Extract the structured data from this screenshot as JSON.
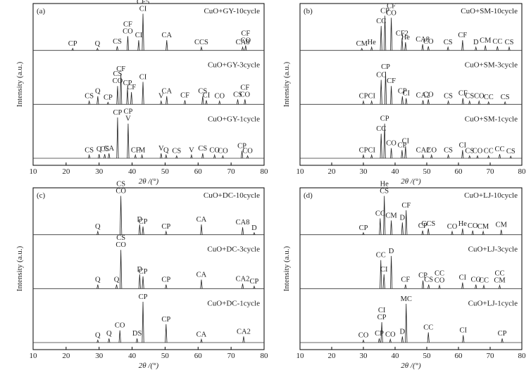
{
  "chart_data": [
    {
      "type": "line",
      "panel": "(a)",
      "xlabel": "2θ /(°)",
      "ylabel": "Intensity (a.u.)",
      "xlim": [
        10,
        80
      ],
      "xticks": [
        10,
        20,
        30,
        40,
        50,
        60,
        70,
        80
      ],
      "series": [
        {
          "name": "CuO+GY-10cycle",
          "x": [
            22,
            29.5,
            35.5,
            38.7,
            42,
            43.3,
            50.5,
            61,
            73.5,
            74.4
          ],
          "values": [
            5,
            5,
            10,
            35,
            25,
            90,
            25,
            8,
            8,
            12
          ],
          "labels": [
            [
              "CP"
            ],
            [
              "Q"
            ],
            [
              "CS"
            ],
            [
              "CF",
              "CO"
            ],
            [
              "CI"
            ],
            [
              "CF5",
              "CI"
            ],
            [
              "CA"
            ],
            [
              "CCS"
            ],
            [
              "CA8"
            ],
            [
              "CF",
              "CO"
            ]
          ]
        },
        {
          "name": "CuO+GY-3cycle",
          "x": [
            27,
            29.6,
            32.7,
            35.6,
            36.6,
            38.6,
            39.8,
            43.3,
            48.8,
            50.5,
            56,
            61.4,
            62.5,
            66.5,
            72,
            74.2
          ],
          "values": [
            8,
            20,
            5,
            45,
            75,
            40,
            30,
            55,
            8,
            20,
            10,
            20,
            10,
            8,
            12,
            12
          ],
          "labels": [
            [
              "CS"
            ],
            [
              "Q"
            ],
            [
              "CP"
            ],
            [
              "CS",
              "CO"
            ],
            [
              "CF"
            ],
            [
              "CP"
            ],
            [
              "CF"
            ],
            [
              "CI"
            ],
            [
              "V"
            ],
            [
              "CA"
            ],
            [
              "CF"
            ],
            [
              "CS"
            ],
            [
              "CI"
            ],
            [
              "CO"
            ],
            [
              "CS"
            ],
            [
              "CF",
              "CO"
            ]
          ]
        },
        {
          "name": "CuO+GY-1cycle",
          "x": [
            27,
            30,
            31.7,
            33,
            35.6,
            38.8,
            41,
            43,
            48.8,
            50.3,
            53.5,
            58,
            61.4,
            65,
            67.5,
            73.3,
            75
          ],
          "values": [
            8,
            10,
            10,
            12,
            100,
            85,
            8,
            8,
            12,
            8,
            6,
            8,
            12,
            8,
            6,
            18,
            6
          ],
          "labels": [
            [
              "CS"
            ],
            [
              "Q"
            ],
            [
              "CS"
            ],
            [
              "CA"
            ],
            [
              "CP"
            ],
            [
              "CP",
              "V"
            ],
            [
              "CF"
            ],
            [
              "M"
            ],
            [
              "V"
            ],
            [
              "Q"
            ],
            [
              "CS"
            ],
            [
              "V"
            ],
            [
              "CS"
            ],
            [
              "CO"
            ],
            [
              "CO"
            ],
            [
              "CP"
            ],
            [
              "CO"
            ]
          ]
        }
      ]
    },
    {
      "type": "line",
      "panel": "(b)",
      "xlabel": "2θ /(°)",
      "ylabel": "Intensity (a.u.)",
      "xlim": [
        10,
        80
      ],
      "xticks": [
        10,
        20,
        30,
        40,
        50,
        60,
        70,
        80
      ],
      "series": [
        {
          "name": "CuO+SM-10cycle",
          "x": [
            29.5,
            32.6,
            35.6,
            36.8,
            38.8,
            42.2,
            43.3,
            48.7,
            50.5,
            56.7,
            61.3,
            65.5,
            68.5,
            72.3,
            76
          ],
          "values": [
            5,
            8,
            60,
            85,
            80,
            30,
            20,
            15,
            10,
            8,
            25,
            8,
            12,
            10,
            8
          ],
          "labels": [
            [
              "CM"
            ],
            [
              "He"
            ],
            [
              "CC"
            ],
            [
              "CP"
            ],
            [
              "CF",
              "CO"
            ],
            [
              "CF2"
            ],
            [
              "He"
            ],
            [
              "CA8"
            ],
            [
              "CO"
            ],
            [
              "CS"
            ],
            [
              "CF"
            ],
            [
              "D"
            ],
            [
              "CM"
            ],
            [
              "CC"
            ],
            [
              "CS"
            ]
          ]
        },
        {
          "name": "CuO+SM-3cycle",
          "x": [
            30,
            32.6,
            35.6,
            37,
            38.8,
            42.3,
            43.5,
            48.8,
            50.5,
            56.8,
            61.4,
            63.5,
            66.5,
            69.5,
            74.7
          ],
          "values": [
            8,
            8,
            60,
            80,
            45,
            20,
            15,
            10,
            12,
            8,
            15,
            8,
            8,
            6,
            6
          ],
          "labels": [
            [
              "CP"
            ],
            [
              "CI"
            ],
            [
              "CC"
            ],
            [
              "CP"
            ],
            [
              "CF"
            ],
            [
              "CP"
            ],
            [
              "CI"
            ],
            [
              "CA2"
            ],
            [
              "CO"
            ],
            [
              "CS"
            ],
            [
              "CF"
            ],
            [
              "CS"
            ],
            [
              "CO"
            ],
            [
              "CC"
            ],
            [
              "CS"
            ]
          ]
        },
        {
          "name": "CuO+SM-1cycle",
          "x": [
            30,
            32.6,
            35.6,
            36.7,
            38.8,
            42.2,
            43.3,
            48.8,
            51.5,
            56.8,
            61.3,
            63.5,
            66,
            69.5,
            73,
            76.5
          ],
          "values": [
            8,
            8,
            60,
            85,
            25,
            20,
            30,
            8,
            8,
            8,
            20,
            6,
            6,
            6,
            10,
            5
          ],
          "labels": [
            [
              "CP"
            ],
            [
              "CI"
            ],
            [
              "CC"
            ],
            [
              "CP"
            ],
            [
              "CO"
            ],
            [
              "CP"
            ],
            [
              "CI"
            ],
            [
              "CA2"
            ],
            [
              "CO"
            ],
            [
              "CS"
            ],
            [
              "CI"
            ],
            [
              "CS"
            ],
            [
              "CO"
            ],
            [
              "CC"
            ],
            [
              "CC"
            ],
            [
              "CS"
            ]
          ]
        }
      ]
    },
    {
      "type": "line",
      "panel": "(c)",
      "xlabel": "2θ /(°)",
      "ylabel": "Intensity (a.u.)",
      "xlim": [
        10,
        80
      ],
      "xticks": [
        10,
        20,
        30,
        40,
        50,
        60,
        70,
        80
      ],
      "series": [
        {
          "name": "CuO+DC-10cycle",
          "x": [
            29.6,
            36.6,
            42.3,
            43.3,
            50.3,
            61,
            73.5,
            77
          ],
          "values": [
            8,
            95,
            25,
            20,
            8,
            25,
            18,
            5
          ],
          "labels": [
            [
              "Q"
            ],
            [
              "CS",
              "CO"
            ],
            [
              "D"
            ],
            [
              "CP"
            ],
            [
              "CP"
            ],
            [
              "CA"
            ],
            [
              "CA8"
            ],
            [
              "D"
            ]
          ]
        },
        {
          "name": "CuO+DC-3cycle",
          "x": [
            29.6,
            35.3,
            36.6,
            42.3,
            43.3,
            50.3,
            61,
            73.5,
            77
          ],
          "values": [
            10,
            10,
            95,
            35,
            30,
            10,
            22,
            12,
            6
          ],
          "labels": [
            [
              "Q"
            ],
            [
              "Q"
            ],
            [
              "CS",
              "CO"
            ],
            [
              "D"
            ],
            [
              "CP"
            ],
            [
              "CP"
            ],
            [
              "CA"
            ],
            [
              "CA2"
            ],
            [
              "CP"
            ]
          ]
        },
        {
          "name": "CuO+DC-1cycle",
          "x": [
            29.6,
            33,
            36.3,
            41.5,
            43.3,
            50.3,
            61,
            73.8
          ],
          "values": [
            6,
            10,
            30,
            10,
            100,
            45,
            8,
            15
          ],
          "labels": [
            [
              "Q"
            ],
            [
              "Q"
            ],
            [
              "CO"
            ],
            [
              "DS"
            ],
            [
              "CP"
            ],
            [
              "CP"
            ],
            [
              "CA"
            ],
            [
              "CA2"
            ]
          ]
        }
      ]
    },
    {
      "type": "line",
      "panel": "(d)",
      "xlabel": "2θ /(°)",
      "ylabel": "Intensity (a.u.)",
      "xlim": [
        10,
        80
      ],
      "xticks": [
        10,
        20,
        30,
        40,
        50,
        60,
        70,
        80
      ],
      "series": [
        {
          "name": "CuO+LJ-10cycle",
          "x": [
            30,
            35.3,
            36.6,
            38.8,
            42.3,
            43.5,
            48.7,
            50.5,
            58,
            61.3,
            64.5,
            67.8,
            73.5
          ],
          "values": [
            5,
            40,
            95,
            35,
            30,
            60,
            10,
            15,
            8,
            15,
            10,
            8,
            12
          ],
          "labels": [
            [
              "CP"
            ],
            [
              "CC"
            ],
            [
              "He",
              "CS"
            ],
            [
              "CM"
            ],
            [
              "D"
            ],
            [
              "CF"
            ],
            [
              "CP"
            ],
            [
              "CCS"
            ],
            [
              "CO"
            ],
            [
              "He"
            ],
            [
              "CO"
            ],
            [
              "CM"
            ],
            [
              "CM"
            ]
          ]
        },
        {
          "name": "CuO+LJ-3cycle",
          "x": [
            35.5,
            36.5,
            38.8,
            43.3,
            48.8,
            50.6,
            54,
            61.3,
            65.5,
            68,
            73
          ],
          "values": [
            70,
            35,
            80,
            10,
            20,
            10,
            8,
            15,
            10,
            8,
            8
          ],
          "labels": [
            [
              "CC"
            ],
            [
              "CI"
            ],
            [
              "D"
            ],
            [
              "CF"
            ],
            [
              "CP"
            ],
            [
              "CS"
            ],
            [
              "CC",
              "CO"
            ],
            [
              "CI"
            ],
            [
              "CO"
            ],
            [
              "CC"
            ],
            [
              "CC",
              "CM"
            ]
          ]
        },
        {
          "name": "CuO+LJ-1cycle",
          "x": [
            30,
            35,
            35.8,
            38.5,
            42.3,
            43.5,
            50.5,
            61.5,
            73.8
          ],
          "values": [
            6,
            10,
            50,
            8,
            15,
            95,
            25,
            18,
            10
          ],
          "labels": [
            [
              "CO"
            ],
            [
              "CP"
            ],
            [
              "CI",
              "CP"
            ],
            [
              "CO"
            ],
            [
              "D"
            ],
            [
              "MC"
            ],
            [
              "CC"
            ],
            [
              "CI"
            ],
            [
              "CP"
            ]
          ]
        }
      ]
    }
  ]
}
